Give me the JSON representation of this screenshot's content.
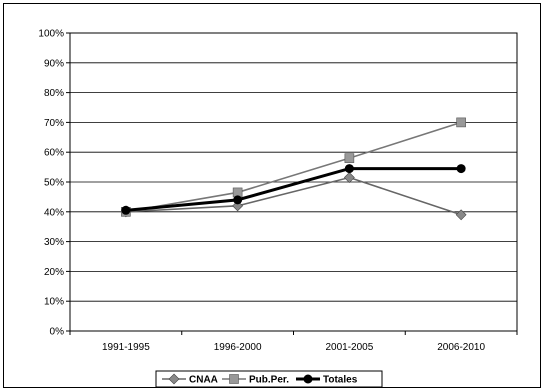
{
  "chart_data": {
    "type": "line",
    "categories": [
      "1991-1995",
      "1996-2000",
      "2001-2005",
      "2006-2010"
    ],
    "ylim": [
      0,
      100
    ],
    "yticks": [
      "0%",
      "10%",
      "20%",
      "30%",
      "40%",
      "50%",
      "60%",
      "70%",
      "80%",
      "90%",
      "100%"
    ],
    "grid": true,
    "legend_position": "bottom",
    "series": [
      {
        "name": "CNAA",
        "values": [
          40,
          42,
          51.5,
          39
        ],
        "color": "#666666",
        "marker": "diamond",
        "marker_color": "#888888"
      },
      {
        "name": "Pub.Per.",
        "values": [
          40,
          46.5,
          58,
          70
        ],
        "color": "#777777",
        "marker": "square",
        "marker_color": "#999999"
      },
      {
        "name": "Totales",
        "values": [
          40.5,
          44,
          54.5,
          54.5
        ],
        "color": "#000000",
        "marker": "circle",
        "marker_color": "#000000"
      }
    ]
  }
}
